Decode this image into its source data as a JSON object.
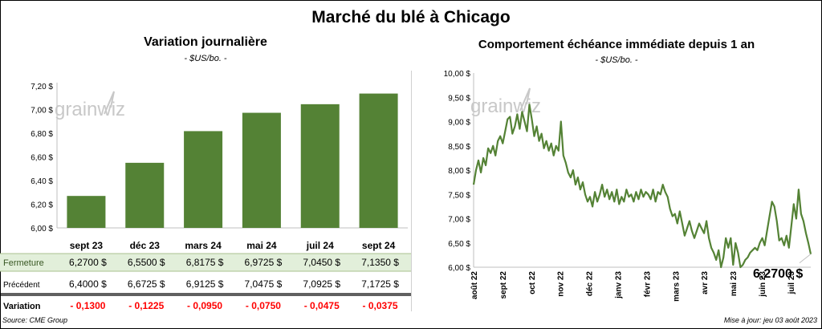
{
  "title": "Marché du blé à Chicago",
  "left_title": "Variation  journalière",
  "left_subtitle": "- $US/bo. -",
  "right_title": "Comportement  échéance immédiate depuis 1 an",
  "right_subtitle": "- $US/bo. -",
  "watermark": "grainwiz",
  "source": "Source: CME Group",
  "updated": "Mise à jour: jeu 03 août 2023",
  "last_value": "6,2700 $",
  "colors": {
    "bar": "#548235",
    "line": "#548235",
    "fermeture_bg": "#e2efda",
    "negative": "#ff0000"
  },
  "table": {
    "rows": [
      {
        "label": "Fermeture",
        "values": [
          "6,2700  $",
          "6,5500  $",
          "6,8175  $",
          "6,9725  $",
          "7,0450  $",
          "7,1350  $"
        ]
      },
      {
        "label": "Précédent",
        "values": [
          "6,4000  $",
          "6,6725  $",
          "6,9125  $",
          "7,0475  $",
          "7,0925  $",
          "7,1725  $"
        ]
      },
      {
        "label": "Variation",
        "values": [
          "- 0,1300",
          "- 0,1225",
          "- 0,0950",
          "- 0,0750",
          "- 0,0475",
          "- 0,0375"
        ]
      }
    ]
  },
  "chart_data": [
    {
      "type": "bar",
      "categories": [
        "sept 23",
        "déc 23",
        "mars 24",
        "mai 24",
        "juil 24",
        "sept 24"
      ],
      "values": [
        6.27,
        6.55,
        6.8175,
        6.9725,
        7.045,
        7.135
      ],
      "ylim": [
        6.0,
        7.2
      ],
      "yticks": [
        "6,00 $",
        "6,20 $",
        "6,40 $",
        "6,60 $",
        "6,80 $",
        "7,00 $",
        "7,20 $"
      ],
      "ytick_values": [
        6.0,
        6.2,
        6.4,
        6.6,
        6.8,
        7.0,
        7.2
      ],
      "grid": false
    },
    {
      "type": "line",
      "x_start": "2022-08-01",
      "x_end": "2023-08-03",
      "xticks": [
        "août 22",
        "sept 22",
        "oct 22",
        "nov 22",
        "déc 22",
        "janv 23",
        "févr 23",
        "mars 23",
        "avr 23",
        "mai 23",
        "juin 23",
        "juil 23"
      ],
      "ylim": [
        6.0,
        10.0
      ],
      "yticks": [
        "6,00 $",
        "6,50 $",
        "7,00 $",
        "7,50 $",
        "8,00 $",
        "8,50 $",
        "9,00 $",
        "9,50 $",
        "10,00 $"
      ],
      "ytick_values": [
        6.0,
        6.5,
        7.0,
        7.5,
        8.0,
        8.5,
        9.0,
        9.5,
        10.0
      ],
      "grid": false,
      "values": [
        7.7,
        8.0,
        8.2,
        7.95,
        8.25,
        8.1,
        8.45,
        8.35,
        8.5,
        8.3,
        8.6,
        8.7,
        8.55,
        8.8,
        9.05,
        9.1,
        8.75,
        8.9,
        9.15,
        8.85,
        9.2,
        9.0,
        8.8,
        9.35,
        9.05,
        8.7,
        8.9,
        8.6,
        8.75,
        8.45,
        8.6,
        8.4,
        8.55,
        8.3,
        8.5,
        8.4,
        9.0,
        8.3,
        8.15,
        7.95,
        7.85,
        8.0,
        7.7,
        7.85,
        7.6,
        7.75,
        7.5,
        7.35,
        7.45,
        7.25,
        7.55,
        7.35,
        7.5,
        7.7,
        7.45,
        7.6,
        7.4,
        7.55,
        7.35,
        7.6,
        7.3,
        7.45,
        7.35,
        7.6,
        7.45,
        7.5,
        7.35,
        7.55,
        7.4,
        7.6,
        7.45,
        7.55,
        7.5,
        7.4,
        7.6,
        7.35,
        7.55,
        7.5,
        7.7,
        7.55,
        7.45,
        7.2,
        7.05,
        7.1,
        6.9,
        7.15,
        6.9,
        6.65,
        6.8,
        6.95,
        6.75,
        6.6,
        6.75,
        6.9,
        6.8,
        6.7,
        6.95,
        6.6,
        6.4,
        6.3,
        6.15,
        6.35,
        6.0,
        6.2,
        6.6,
        6.4,
        6.6,
        6.05,
        6.5,
        6.3,
        6.0,
        6.05,
        6.15,
        6.2,
        6.3,
        6.35,
        6.4,
        6.35,
        6.5,
        6.6,
        6.45,
        6.75,
        7.05,
        7.35,
        7.25,
        6.95,
        6.55,
        6.6,
        6.45,
        6.65,
        6.4,
        6.85,
        7.3,
        7.0,
        7.6,
        7.1,
        6.95,
        6.7,
        6.5,
        6.27
      ]
    }
  ]
}
